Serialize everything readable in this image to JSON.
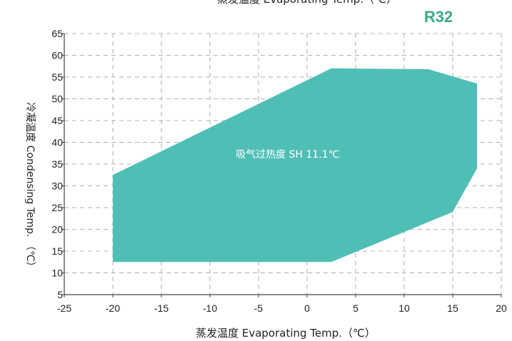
{
  "chart_data": {
    "type": "area",
    "title": "R32",
    "top_label": "蒸发温度 Evaporating Temp.（℃）",
    "xlabel": "蒸发温度 Evaporating Temp.（℃）",
    "ylabel": "冷凝温度 Condensing Temp. （℃）",
    "xlim": [
      -25,
      20
    ],
    "ylim": [
      5,
      65
    ],
    "x_ticks": [
      -25,
      -20,
      -15,
      -10,
      -5,
      0,
      5,
      10,
      15,
      20
    ],
    "y_ticks": [
      5,
      10,
      15,
      20,
      25,
      30,
      35,
      40,
      45,
      50,
      55,
      60,
      65
    ],
    "grid": true,
    "grid_style": "dashed",
    "envelope": {
      "label": "吸气过热度 SH 11.1℃",
      "x": [
        -20,
        2.5,
        12.5,
        17.5,
        17.5,
        15,
        2.5,
        -20
      ],
      "y": [
        32.5,
        57,
        56.8,
        53.5,
        34,
        24,
        12.5,
        12.5
      ],
      "color": "#4fbfb5"
    },
    "accent_color": "#3aa987"
  }
}
